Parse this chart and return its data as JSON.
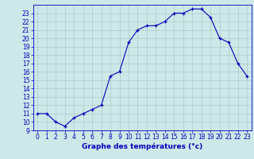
{
  "hours": [
    0,
    1,
    2,
    3,
    4,
    5,
    6,
    7,
    8,
    9,
    10,
    11,
    12,
    13,
    14,
    15,
    16,
    17,
    18,
    19,
    20,
    21,
    22,
    23
  ],
  "temps": [
    11,
    11,
    10,
    9.5,
    10.5,
    11,
    11.5,
    12,
    15.5,
    16,
    19.5,
    21,
    21.5,
    21.5,
    22,
    23,
    23,
    23.5,
    23.5,
    22.5,
    20,
    19.5,
    17,
    15.5
  ],
  "line_color": "#0000bb",
  "marker": "+",
  "bg_color": "#cce8e8",
  "grid_color": "#aacccc",
  "xlabel": "Graphe des températures (°c)",
  "xlim": [
    -0.5,
    23.5
  ],
  "ylim": [
    9,
    24
  ],
  "yticks": [
    9,
    10,
    11,
    12,
    13,
    14,
    15,
    16,
    17,
    18,
    19,
    20,
    21,
    22,
    23
  ],
  "xticks": [
    0,
    1,
    2,
    3,
    4,
    5,
    6,
    7,
    8,
    9,
    10,
    11,
    12,
    13,
    14,
    15,
    16,
    17,
    18,
    19,
    20,
    21,
    22,
    23
  ],
  "axis_color": "#0000bb",
  "tick_color": "#0000bb",
  "label_color": "#0000bb",
  "label_fontsize": 6.5,
  "tick_fontsize": 5.5
}
